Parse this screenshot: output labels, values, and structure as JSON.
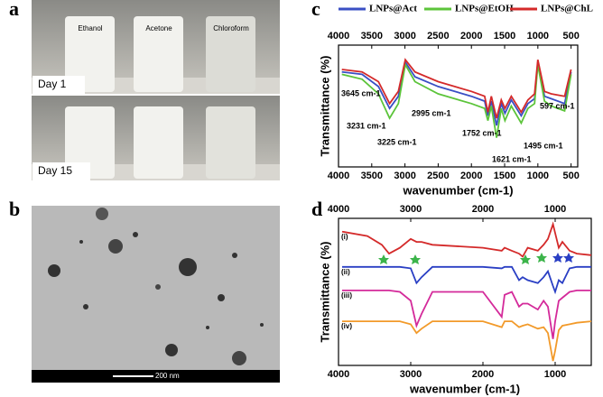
{
  "figure": {
    "panel_labels": [
      "a",
      "b",
      "c",
      "d"
    ],
    "photo_a": {
      "bottles": [
        "Ethanol",
        "Acetone",
        "Chloroform"
      ],
      "days": [
        "Day 1",
        "Day 15"
      ]
    },
    "photo_b": {
      "scale_bar": "200 nm"
    }
  },
  "chart_data": [
    {
      "type": "line",
      "xlabel": "wavenumber (cm-1)",
      "ylabel": "Transmittance (%)",
      "xlim": [
        4000,
        400
      ],
      "xticks": [
        4000,
        3500,
        3000,
        2500,
        2000,
        1500,
        1000,
        500
      ],
      "ylim": [
        0,
        100
      ],
      "legend": "top",
      "x": [
        3950,
        3645,
        3400,
        3231,
        3100,
        2995,
        2850,
        2500,
        2000,
        1800,
        1752,
        1700,
        1621,
        1550,
        1495,
        1400,
        1250,
        1150,
        1050,
        1000,
        900,
        800,
        597,
        500
      ],
      "series": [
        {
          "name": "LNPs@Act",
          "color": "#3a4fc4",
          "values": [
            78,
            76,
            66,
            48,
            58,
            86,
            74,
            66,
            58,
            54,
            42,
            54,
            34,
            52,
            44,
            55,
            42,
            52,
            56,
            86,
            58,
            56,
            52,
            78
          ]
        },
        {
          "name": "LNPs@EtOH",
          "color": "#5cc43a",
          "values": [
            76,
            72,
            60,
            40,
            52,
            84,
            70,
            60,
            52,
            48,
            38,
            50,
            24,
            48,
            38,
            50,
            36,
            48,
            52,
            84,
            54,
            50,
            46,
            76
          ]
        },
        {
          "name": "LNPs@ChL",
          "color": "#d42a2a",
          "values": [
            80,
            78,
            70,
            52,
            62,
            88,
            78,
            70,
            62,
            58,
            45,
            58,
            40,
            55,
            48,
            58,
            45,
            55,
            60,
            88,
            62,
            60,
            58,
            80
          ]
        }
      ],
      "annotations": [
        "3645 cm-1",
        "3231 cm-1",
        "3225 cm-1",
        "2995 cm-1",
        "1752 cm-1",
        "1621 cm-1",
        "1495 cm-1",
        "597 cm-1"
      ]
    },
    {
      "type": "line",
      "xlabel": "wavenumber (cm-1)",
      "ylabel": "Transmittance (%)",
      "xlim": [
        4000,
        500
      ],
      "xticks": [
        4000,
        3000,
        2000,
        1000
      ],
      "ylim": [
        0,
        100
      ],
      "legend": "inline",
      "x": [
        3950,
        3600,
        3400,
        3300,
        3150,
        3000,
        2920,
        2850,
        2700,
        2000,
        1740,
        1700,
        1600,
        1500,
        1450,
        1380,
        1240,
        1160,
        1100,
        1030,
        1000,
        950,
        900,
        800,
        700,
        500
      ],
      "series": [
        {
          "name": "(i)",
          "color": "#d42a2a",
          "values": [
            91,
            88,
            82,
            76,
            80,
            86,
            84,
            84,
            82,
            80,
            78,
            80,
            78,
            76,
            74,
            80,
            78,
            82,
            86,
            96,
            90,
            80,
            84,
            78,
            76,
            75
          ]
        },
        {
          "name": "(ii)",
          "color": "#2a3fc4",
          "values": [
            67,
            67,
            67,
            67,
            67,
            66,
            56,
            60,
            67,
            67,
            66,
            67,
            67,
            58,
            60,
            58,
            56,
            60,
            64,
            54,
            50,
            58,
            56,
            66,
            67,
            67
          ]
        },
        {
          "name": "(iii)",
          "color": "#d42a9a",
          "values": [
            51,
            51,
            51,
            51,
            50,
            44,
            27,
            35,
            50,
            50,
            33,
            48,
            50,
            40,
            42,
            42,
            38,
            44,
            40,
            18,
            30,
            44,
            46,
            50,
            51,
            51
          ]
        },
        {
          "name": "(iv)",
          "color": "#f29a2a",
          "values": [
            30,
            30,
            30,
            30,
            30,
            28,
            22,
            25,
            30,
            30,
            26,
            30,
            30,
            26,
            27,
            28,
            25,
            26,
            22,
            3,
            10,
            24,
            27,
            28,
            29,
            30
          ]
        }
      ]
    }
  ]
}
